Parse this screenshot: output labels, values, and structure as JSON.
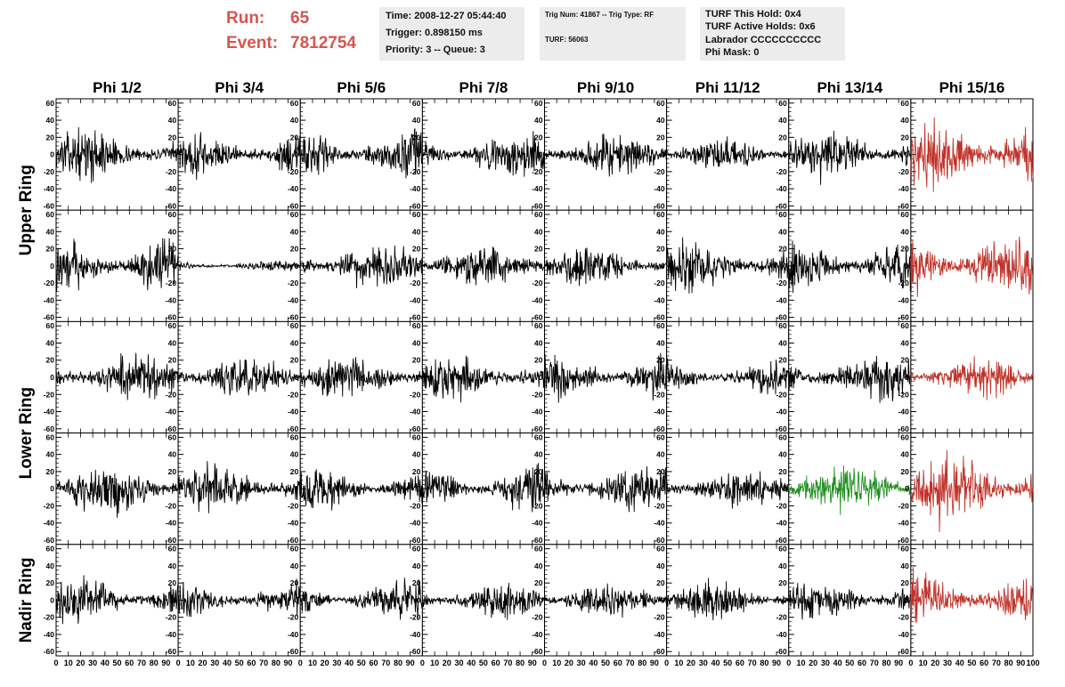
{
  "header": {
    "run_label": "Run:",
    "run_value": "65",
    "event_label": "Event:",
    "event_value": "7812754",
    "box1": {
      "time": "Time: 2008-12-27 05:44:40",
      "trigger": "Trigger: 0.898150 ms",
      "priority": "Priority: 3 -- Queue: 3"
    },
    "box2": {
      "trig": "Trig Num: 41867 -- Trig Type: RF",
      "turf": "TURF: 56063"
    },
    "box3": {
      "this_hold": "TURF This Hold: 0x4",
      "active_holds": "TURF Active Holds: 0x6",
      "labrador": "Labrador CCCCCCCCCC",
      "phi_mask": "Phi Mask: 0"
    },
    "colors": {
      "run_text": "#d9534f",
      "box_bg": "#ececec"
    }
  },
  "chart_data": {
    "type": "line",
    "columns": [
      "Phi 1/2",
      "Phi 3/4",
      "Phi 5/6",
      "Phi 7/8",
      "Phi 9/10",
      "Phi 11/12",
      "Phi 13/14",
      "Phi 15/16"
    ],
    "row_labels": [
      {
        "text": "Upper Ring",
        "rows": [
          0,
          1
        ]
      },
      {
        "text": "Lower Ring",
        "rows": [
          2,
          3
        ]
      },
      {
        "text": "Nadir Ring",
        "rows": [
          4,
          4
        ]
      }
    ],
    "rows": 5,
    "xlim": [
      0,
      100
    ],
    "ylim": [
      -65,
      65
    ],
    "x_ticks": [
      0,
      10,
      20,
      30,
      40,
      50,
      60,
      70,
      80,
      90,
      100
    ],
    "x_tick_labels_panel": [
      "0",
      "10",
      "20",
      "30",
      "40",
      "50",
      "60",
      "70",
      "80",
      "90"
    ],
    "x_tick_label_last": "100",
    "y_ticks": [
      60,
      40,
      20,
      0,
      -20,
      -40,
      -60
    ],
    "colors": {
      "default": "#000000",
      "red": "#c0322a",
      "green": "#1f8f1f"
    },
    "panels": [
      {
        "row": 0,
        "col": 0,
        "amp": 14,
        "color": "default"
      },
      {
        "row": 0,
        "col": 1,
        "amp": 14,
        "color": "default"
      },
      {
        "row": 0,
        "col": 2,
        "amp": 15,
        "color": "default"
      },
      {
        "row": 0,
        "col": 3,
        "amp": 13,
        "color": "default"
      },
      {
        "row": 0,
        "col": 4,
        "amp": 13,
        "color": "default"
      },
      {
        "row": 0,
        "col": 5,
        "amp": 9,
        "color": "default"
      },
      {
        "row": 0,
        "col": 6,
        "amp": 14,
        "color": "default"
      },
      {
        "row": 0,
        "col": 7,
        "amp": 22,
        "color": "red"
      },
      {
        "row": 1,
        "col": 0,
        "amp": 17,
        "color": "default"
      },
      {
        "row": 1,
        "col": 1,
        "amp": 3,
        "color": "default"
      },
      {
        "row": 1,
        "col": 2,
        "amp": 14,
        "color": "default"
      },
      {
        "row": 1,
        "col": 3,
        "amp": 12,
        "color": "default"
      },
      {
        "row": 1,
        "col": 4,
        "amp": 12,
        "color": "default"
      },
      {
        "row": 1,
        "col": 5,
        "amp": 14,
        "color": "default"
      },
      {
        "row": 1,
        "col": 6,
        "amp": 15,
        "color": "default"
      },
      {
        "row": 1,
        "col": 7,
        "amp": 20,
        "color": "red"
      },
      {
        "row": 2,
        "col": 0,
        "amp": 14,
        "color": "default"
      },
      {
        "row": 2,
        "col": 1,
        "amp": 12,
        "color": "default"
      },
      {
        "row": 2,
        "col": 2,
        "amp": 13,
        "color": "default"
      },
      {
        "row": 2,
        "col": 3,
        "amp": 13,
        "color": "default"
      },
      {
        "row": 2,
        "col": 4,
        "amp": 14,
        "color": "default"
      },
      {
        "row": 2,
        "col": 5,
        "amp": 10,
        "color": "default"
      },
      {
        "row": 2,
        "col": 6,
        "amp": 14,
        "color": "default"
      },
      {
        "row": 2,
        "col": 7,
        "amp": 12,
        "color": "red"
      },
      {
        "row": 3,
        "col": 0,
        "amp": 15,
        "color": "default"
      },
      {
        "row": 3,
        "col": 1,
        "amp": 14,
        "color": "default"
      },
      {
        "row": 3,
        "col": 2,
        "amp": 13,
        "color": "default"
      },
      {
        "row": 3,
        "col": 3,
        "amp": 14,
        "color": "default"
      },
      {
        "row": 3,
        "col": 4,
        "amp": 14,
        "color": "default"
      },
      {
        "row": 3,
        "col": 5,
        "amp": 12,
        "color": "default"
      },
      {
        "row": 3,
        "col": 6,
        "amp": 15,
        "color": "green"
      },
      {
        "row": 3,
        "col": 7,
        "amp": 20,
        "color": "red"
      },
      {
        "row": 4,
        "col": 0,
        "amp": 13,
        "color": "default"
      },
      {
        "row": 4,
        "col": 1,
        "amp": 11,
        "color": "default"
      },
      {
        "row": 4,
        "col": 2,
        "amp": 11,
        "color": "default"
      },
      {
        "row": 4,
        "col": 3,
        "amp": 11,
        "color": "default"
      },
      {
        "row": 4,
        "col": 4,
        "amp": 10,
        "color": "default"
      },
      {
        "row": 4,
        "col": 5,
        "amp": 11,
        "color": "default"
      },
      {
        "row": 4,
        "col": 6,
        "amp": 11,
        "color": "default"
      },
      {
        "row": 4,
        "col": 7,
        "amp": 15,
        "color": "red"
      }
    ]
  }
}
